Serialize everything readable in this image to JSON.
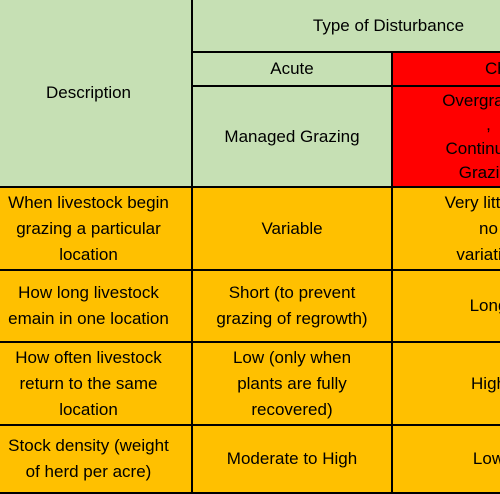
{
  "header": {
    "description": "Description",
    "type_of_disturbance": "Type of Disturbance",
    "acute": "Acute",
    "chronic": "Ch",
    "managed_grazing": "Managed Grazing",
    "overgrazing_line1": "Overgrazing",
    "overgrazing_line2": ",",
    "overgrazing_line3": "Continuous",
    "overgrazing_line4": "Grazing"
  },
  "rows": [
    {
      "description": [
        "When livestock begin",
        "grazing a particular",
        "location"
      ],
      "acute": [
        "Variable"
      ],
      "chronic": [
        "Very little to",
        "no",
        "variation"
      ]
    },
    {
      "description": [
        "How long livestock",
        "emain in one location"
      ],
      "acute": [
        "Short (to prevent",
        "grazing of regrowth)"
      ],
      "chronic": [
        "Long"
      ]
    },
    {
      "description": [
        "How often livestock",
        "return to the same",
        "location"
      ],
      "acute": [
        "Low (only when",
        "plants are fully",
        "recovered)"
      ],
      "chronic": [
        "High"
      ]
    },
    {
      "description": [
        "Stock density (weight",
        "of herd per acre)"
      ],
      "acute": [
        "Moderate to High"
      ],
      "chronic": [
        "Low"
      ]
    }
  ],
  "colors": {
    "header_green": "#c6e0b4",
    "header_red": "#ff0000",
    "body_orange": "#ffc000",
    "border": "#000000"
  }
}
